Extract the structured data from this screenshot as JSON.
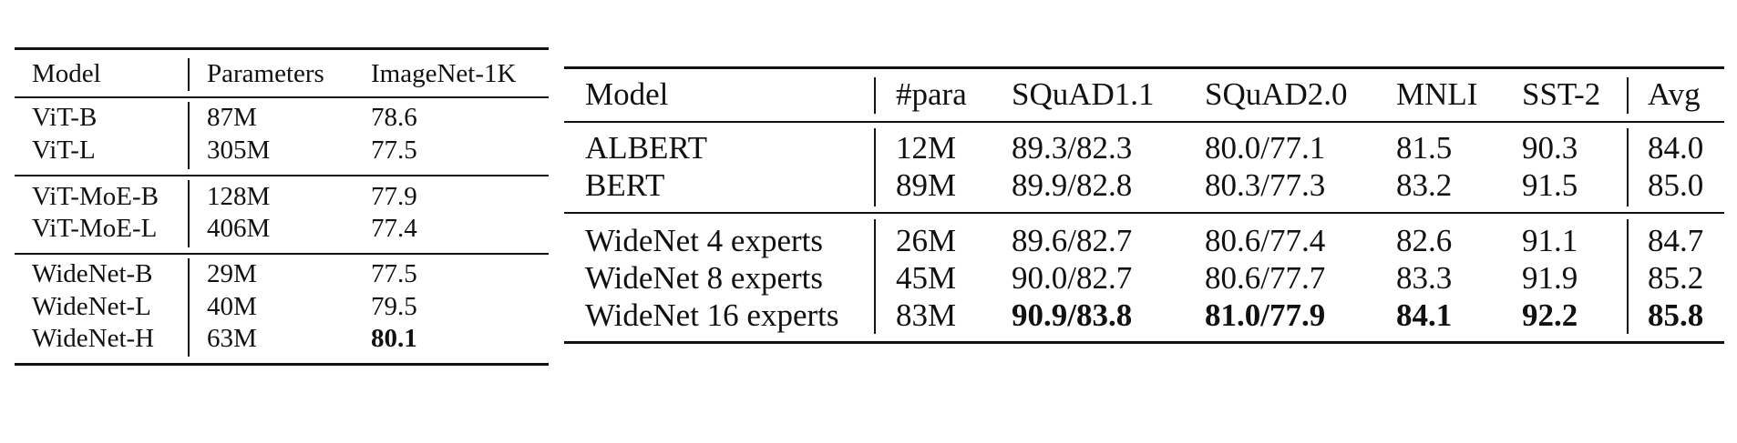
{
  "table1": {
    "headers": [
      "Model",
      "Parameters",
      "ImageNet-1K"
    ],
    "groups": [
      [
        [
          "ViT-B",
          "87M",
          "78.6"
        ],
        [
          "ViT-L",
          "305M",
          "77.5"
        ]
      ],
      [
        [
          "ViT-MoE-B",
          "128M",
          "77.9"
        ],
        [
          "ViT-MoE-L",
          "406M",
          "77.4"
        ]
      ],
      [
        [
          "WideNet-B",
          "29M",
          "77.5"
        ],
        [
          "WideNet-L",
          "40M",
          "79.5"
        ],
        [
          "WideNet-H",
          "63M",
          "80.1"
        ]
      ]
    ]
  },
  "table2": {
    "headers": [
      "Model",
      "#para",
      "SQuAD1.1",
      "SQuAD2.0",
      "MNLI",
      "SST-2",
      "Avg"
    ],
    "groups": [
      [
        [
          "ALBERT",
          "12M",
          "89.3/82.3",
          "80.0/77.1",
          "81.5",
          "90.3",
          "84.0"
        ],
        [
          "BERT",
          "89M",
          "89.9/82.8",
          "80.3/77.3",
          "83.2",
          "91.5",
          "85.0"
        ]
      ],
      [
        [
          "WideNet 4 experts",
          "26M",
          "89.6/82.7",
          "80.6/77.4",
          "82.6",
          "91.1",
          "84.7"
        ],
        [
          "WideNet 8 experts",
          "45M",
          "90.0/82.7",
          "80.6/77.7",
          "83.3",
          "91.9",
          "85.2"
        ],
        [
          "WideNet 16 experts",
          "83M",
          "90.9/83.8",
          "81.0/77.9",
          "84.1",
          "92.2",
          "85.8"
        ]
      ]
    ]
  }
}
